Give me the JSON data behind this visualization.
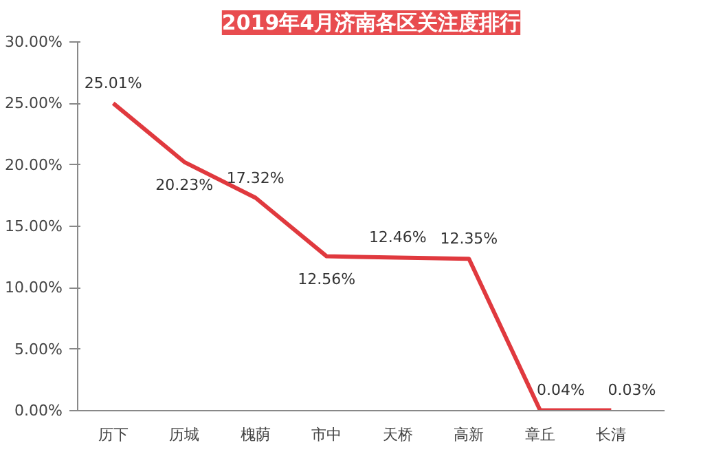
{
  "chart_data": {
    "type": "line",
    "title": "2019年4月济南各区关注度排行",
    "categories": [
      "历下",
      "历城",
      "槐荫",
      "市中",
      "天桥",
      "高新",
      "章丘",
      "长清"
    ],
    "series": [
      {
        "color": "#e0393e",
        "values": [
          25.01,
          20.23,
          17.32,
          12.56,
          12.46,
          12.35,
          0.04,
          0.03
        ]
      }
    ],
    "value_labels": [
      "25.01%",
      "20.23%",
      "17.32%",
      "12.56%",
      "12.46%",
      "12.35%",
      "0.04%",
      "0.03%"
    ],
    "ylim": [
      0,
      30
    ],
    "yticks": [
      {
        "value": 0,
        "label": "0.00%"
      },
      {
        "value": 5,
        "label": "5.00%"
      },
      {
        "value": 10,
        "label": "10.00%"
      },
      {
        "value": 15,
        "label": "15.00%"
      },
      {
        "value": 20,
        "label": "20.00%"
      },
      {
        "value": 25,
        "label": "25.00%"
      },
      {
        "value": 30,
        "label": "30.00%"
      }
    ],
    "grid": false,
    "marker": "none",
    "line_style": "solid"
  }
}
